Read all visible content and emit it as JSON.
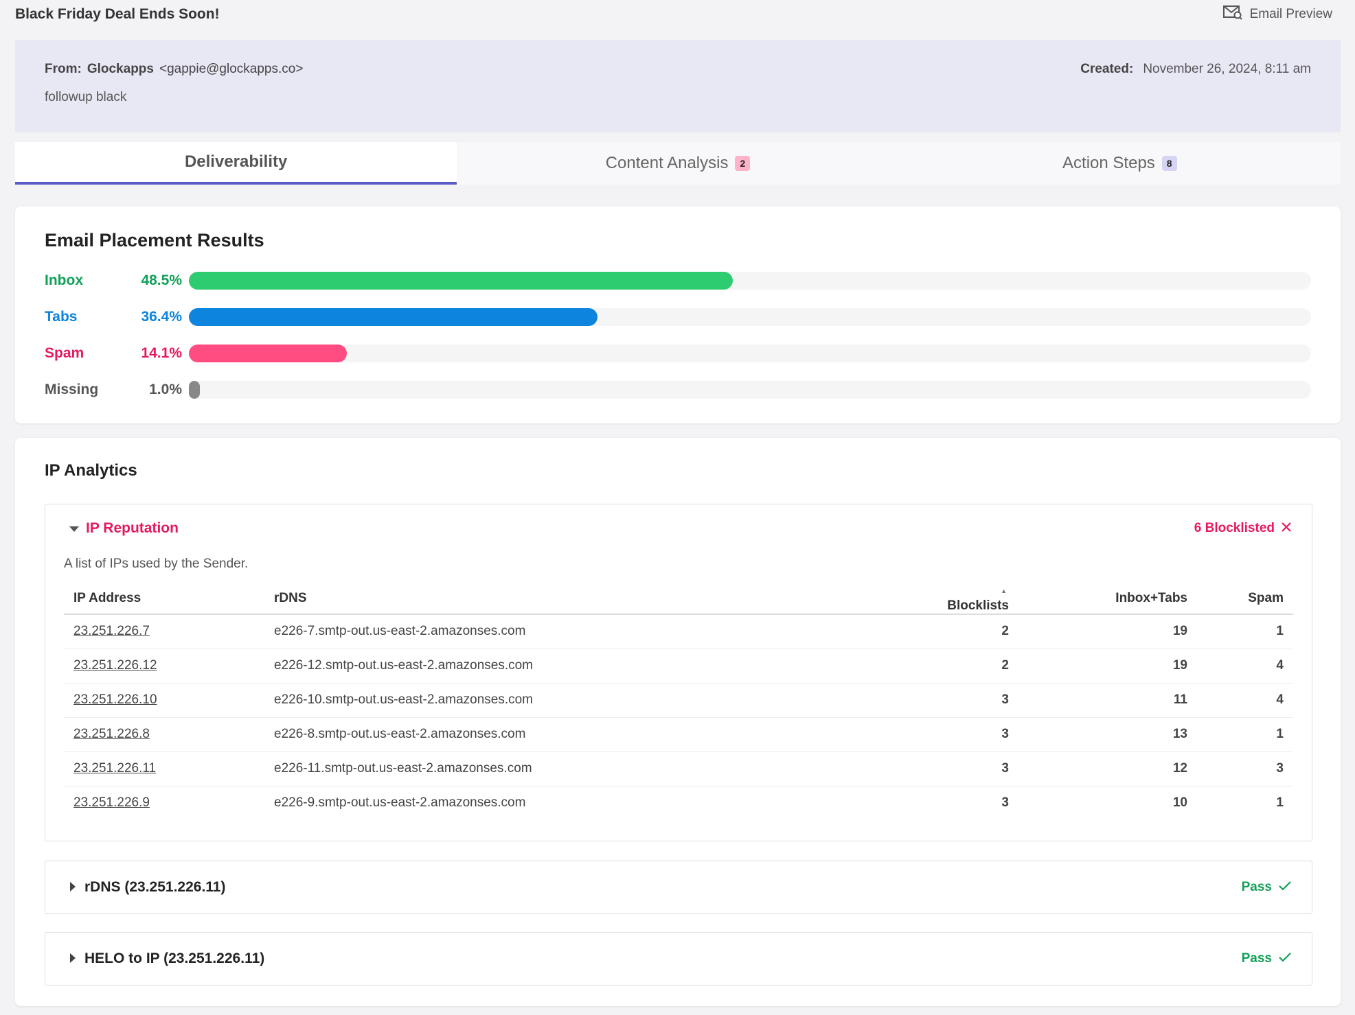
{
  "header": {
    "title": "Black Friday Deal Ends Soon!",
    "email_preview_label": "Email Preview",
    "from_label": "From:",
    "from_name": "Glockapps",
    "from_email": "<gappie@glockapps.co>",
    "subject": "followup black",
    "created_label": "Created:",
    "created_value": "November 26, 2024, 8:11 am"
  },
  "tabs": [
    {
      "label": "Deliverability",
      "badge": null,
      "active": true
    },
    {
      "label": "Content Analysis",
      "badge": "2",
      "active": false
    },
    {
      "label": "Action Steps",
      "badge": "8",
      "active": false
    }
  ],
  "placement": {
    "title": "Email Placement Results",
    "rows": [
      {
        "label": "Inbox",
        "pct": "48.5%",
        "value": 48.5,
        "color": "#2ecc71",
        "text_color": "#11a058"
      },
      {
        "label": "Tabs",
        "pct": "36.4%",
        "value": 36.4,
        "color": "#0d84dd",
        "text_color": "#0d84dd"
      },
      {
        "label": "Spam",
        "pct": "14.1%",
        "value": 14.1,
        "color": "#ff4d82",
        "text_color": "#e6195c"
      },
      {
        "label": "Missing",
        "pct": "1.0%",
        "value": 1.0,
        "color": "#888888",
        "text_color": "#555555"
      }
    ]
  },
  "ip_analytics": {
    "title": "IP Analytics",
    "reputation": {
      "title": "IP Reputation",
      "status": "6 Blocklisted",
      "description": "A list of IPs used by the Sender.",
      "columns": [
        "IP Address",
        "rDNS",
        "Blocklists",
        "Inbox+Tabs",
        "Spam"
      ],
      "rows": [
        {
          "ip": "23.251.226.7",
          "rdns": "e226-7.smtp-out.us-east-2.amazonses.com",
          "blocklists": "2",
          "inbox_tabs": "19",
          "spam": "1"
        },
        {
          "ip": "23.251.226.12",
          "rdns": "e226-12.smtp-out.us-east-2.amazonses.com",
          "blocklists": "2",
          "inbox_tabs": "19",
          "spam": "4"
        },
        {
          "ip": "23.251.226.10",
          "rdns": "e226-10.smtp-out.us-east-2.amazonses.com",
          "blocklists": "3",
          "inbox_tabs": "11",
          "spam": "4"
        },
        {
          "ip": "23.251.226.8",
          "rdns": "e226-8.smtp-out.us-east-2.amazonses.com",
          "blocklists": "3",
          "inbox_tabs": "13",
          "spam": "1"
        },
        {
          "ip": "23.251.226.11",
          "rdns": "e226-11.smtp-out.us-east-2.amazonses.com",
          "blocklists": "3",
          "inbox_tabs": "12",
          "spam": "3"
        },
        {
          "ip": "23.251.226.9",
          "rdns": "e226-9.smtp-out.us-east-2.amazonses.com",
          "blocklists": "3",
          "inbox_tabs": "10",
          "spam": "1"
        }
      ]
    },
    "checks": [
      {
        "title": "rDNS (23.251.226.11)",
        "status": "Pass"
      },
      {
        "title": "HELO to IP (23.251.226.11)",
        "status": "Pass"
      }
    ]
  }
}
